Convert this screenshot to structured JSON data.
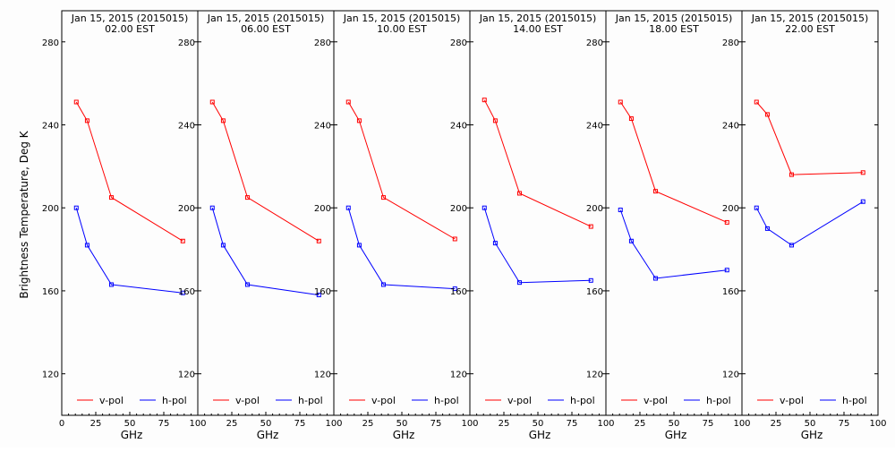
{
  "figure": {
    "ylabel": "Brightness Temperature, Deg K",
    "xlabel": "GHz"
  },
  "chart_data": [
    {
      "type": "line",
      "title": "Jan 15, 2015 (2015015)",
      "subtitle": "02.00 EST",
      "xlabel": "GHz",
      "ylabel": "Brightness Temperature, Deg K",
      "xlim": [
        0,
        100
      ],
      "ylim": [
        100,
        295
      ],
      "yticks": [
        120,
        160,
        200,
        240,
        280
      ],
      "xticks": [
        0,
        25,
        50,
        75,
        100
      ],
      "grid": false,
      "legend": "bottom",
      "series": [
        {
          "name": "v-pol",
          "color": "#ff0000",
          "x": [
            10.7,
            18.7,
            36.5,
            89.0
          ],
          "y": [
            251,
            242,
            205,
            184
          ]
        },
        {
          "name": "h-pol",
          "color": "#0000ff",
          "x": [
            10.7,
            18.7,
            36.5,
            89.0
          ],
          "y": [
            200,
            182,
            163,
            159
          ]
        }
      ]
    },
    {
      "type": "line",
      "title": "Jan 15, 2015 (2015015)",
      "subtitle": "06.00 EST",
      "xlabel": "GHz",
      "xlim": [
        0,
        100
      ],
      "ylim": [
        100,
        295
      ],
      "yticks": [
        120,
        160,
        200,
        240,
        280
      ],
      "xticks": [
        25,
        50,
        75,
        100
      ],
      "grid": false,
      "legend": "bottom",
      "series": [
        {
          "name": "v-pol",
          "color": "#ff0000",
          "x": [
            10.7,
            18.7,
            36.5,
            89.0
          ],
          "y": [
            251,
            242,
            205,
            184
          ]
        },
        {
          "name": "h-pol",
          "color": "#0000ff",
          "x": [
            10.7,
            18.7,
            36.5,
            89.0
          ],
          "y": [
            200,
            182,
            163,
            158
          ]
        }
      ]
    },
    {
      "type": "line",
      "title": "Jan 15, 2015 (2015015)",
      "subtitle": "10.00 EST",
      "xlabel": "GHz",
      "xlim": [
        0,
        100
      ],
      "ylim": [
        100,
        295
      ],
      "yticks": [
        120,
        160,
        200,
        240,
        280
      ],
      "xticks": [
        25,
        50,
        75,
        100
      ],
      "grid": false,
      "legend": "bottom",
      "series": [
        {
          "name": "v-pol",
          "color": "#ff0000",
          "x": [
            10.7,
            18.7,
            36.5,
            89.0
          ],
          "y": [
            251,
            242,
            205,
            185
          ]
        },
        {
          "name": "h-pol",
          "color": "#0000ff",
          "x": [
            10.7,
            18.7,
            36.5,
            89.0
          ],
          "y": [
            200,
            182,
            163,
            161
          ]
        }
      ]
    },
    {
      "type": "line",
      "title": "Jan 15, 2015 (2015015)",
      "subtitle": "14.00 EST",
      "xlabel": "GHz",
      "xlim": [
        0,
        100
      ],
      "ylim": [
        100,
        295
      ],
      "yticks": [
        120,
        160,
        200,
        240,
        280
      ],
      "xticks": [
        25,
        50,
        75,
        100
      ],
      "grid": false,
      "legend": "bottom",
      "series": [
        {
          "name": "v-pol",
          "color": "#ff0000",
          "x": [
            10.7,
            18.7,
            36.5,
            89.0
          ],
          "y": [
            252,
            242,
            207,
            191
          ]
        },
        {
          "name": "h-pol",
          "color": "#0000ff",
          "x": [
            10.7,
            18.7,
            36.5,
            89.0
          ],
          "y": [
            200,
            183,
            164,
            165
          ]
        }
      ]
    },
    {
      "type": "line",
      "title": "Jan 15, 2015 (2015015)",
      "subtitle": "18.00 EST",
      "xlabel": "GHz",
      "xlim": [
        0,
        100
      ],
      "ylim": [
        100,
        295
      ],
      "yticks": [
        120,
        160,
        200,
        240,
        280
      ],
      "xticks": [
        25,
        50,
        75,
        100
      ],
      "grid": false,
      "legend": "bottom",
      "series": [
        {
          "name": "v-pol",
          "color": "#ff0000",
          "x": [
            10.7,
            18.7,
            36.5,
            89.0
          ],
          "y": [
            251,
            243,
            208,
            193
          ]
        },
        {
          "name": "h-pol",
          "color": "#0000ff",
          "x": [
            10.7,
            18.7,
            36.5,
            89.0
          ],
          "y": [
            199,
            184,
            166,
            170
          ]
        }
      ]
    },
    {
      "type": "line",
      "title": "Jan 15, 2015 (2015015)",
      "subtitle": "22.00 EST",
      "xlabel": "GHz",
      "xlim": [
        0,
        100
      ],
      "ylim": [
        100,
        295
      ],
      "yticks": [
        120,
        160,
        200,
        240,
        280
      ],
      "xticks": [
        25,
        50,
        75,
        100
      ],
      "grid": false,
      "legend": "bottom",
      "series": [
        {
          "name": "v-pol",
          "color": "#ff0000",
          "x": [
            10.7,
            18.7,
            36.5,
            89.0
          ],
          "y": [
            251,
            245,
            216,
            217
          ]
        },
        {
          "name": "h-pol",
          "color": "#0000ff",
          "x": [
            10.7,
            18.7,
            36.5,
            89.0
          ],
          "y": [
            200,
            190,
            182,
            203
          ]
        }
      ]
    }
  ]
}
